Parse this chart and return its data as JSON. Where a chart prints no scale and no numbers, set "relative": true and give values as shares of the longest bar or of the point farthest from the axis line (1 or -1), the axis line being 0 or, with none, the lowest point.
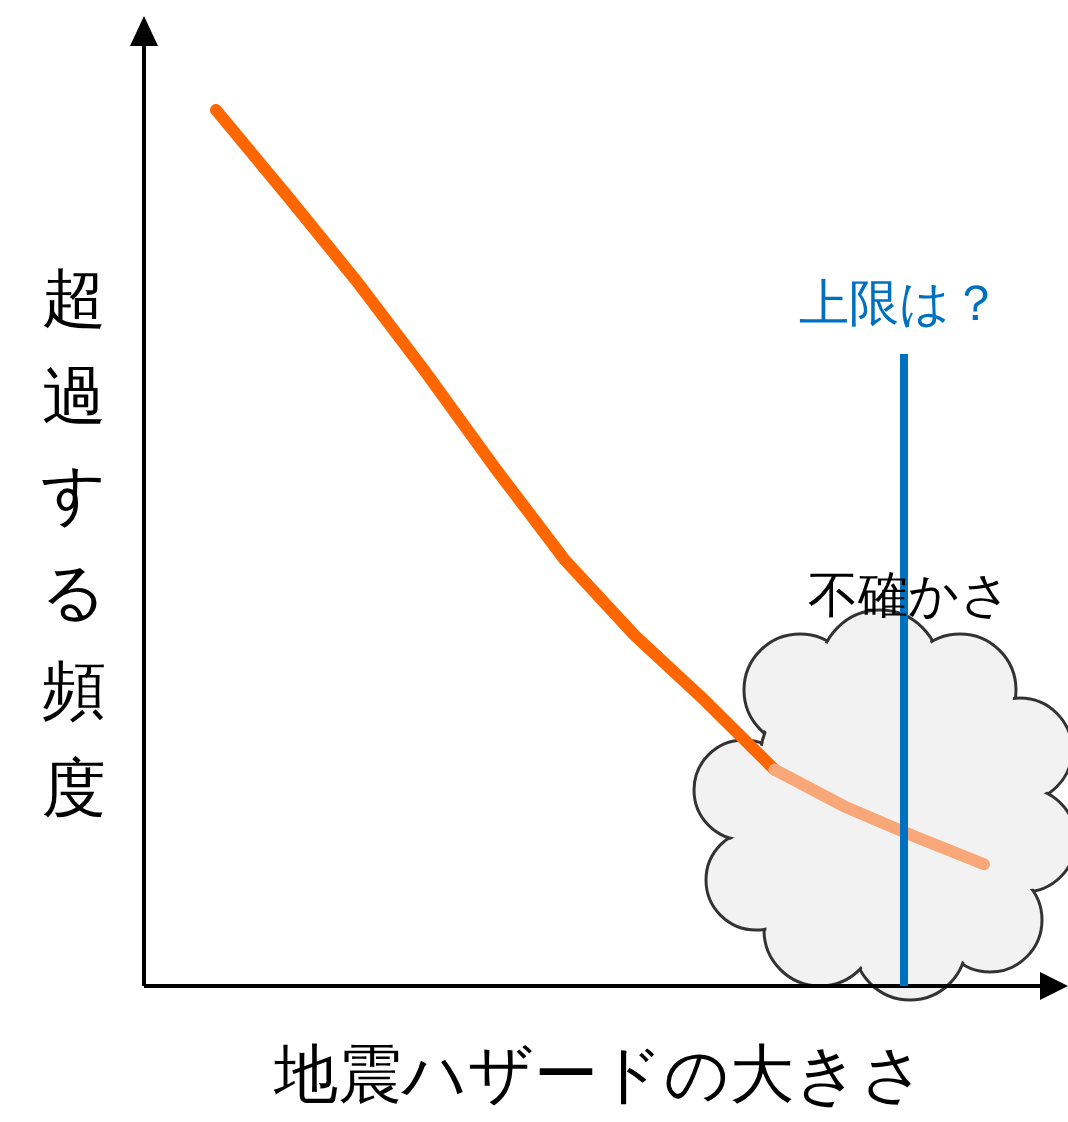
{
  "chart_data": {
    "type": "line",
    "relative": true,
    "xlabel": "地震ハザードの大きさ",
    "ylabel": "超過する頻度",
    "categories": [
      null,
      null,
      null,
      null,
      null,
      null,
      null,
      null,
      null,
      null,
      null,
      null
    ],
    "series": [
      {
        "color": "#ff6600",
        "values": [
          1,
          0.904,
          0.806,
          0.701,
          0.591,
          0.486,
          0.4,
          0.326,
          0.247,
          null,
          null,
          null
        ]
      },
      {
        "color": "#f8a878",
        "values": [
          null,
          null,
          null,
          null,
          null,
          null,
          null,
          null,
          0.247,
          0.205,
          0.171,
          0.139
        ]
      }
    ],
    "annotations": [
      "上限は？",
      "不確かさ"
    ],
    "marker": "none",
    "line_style": "solid"
  }
}
